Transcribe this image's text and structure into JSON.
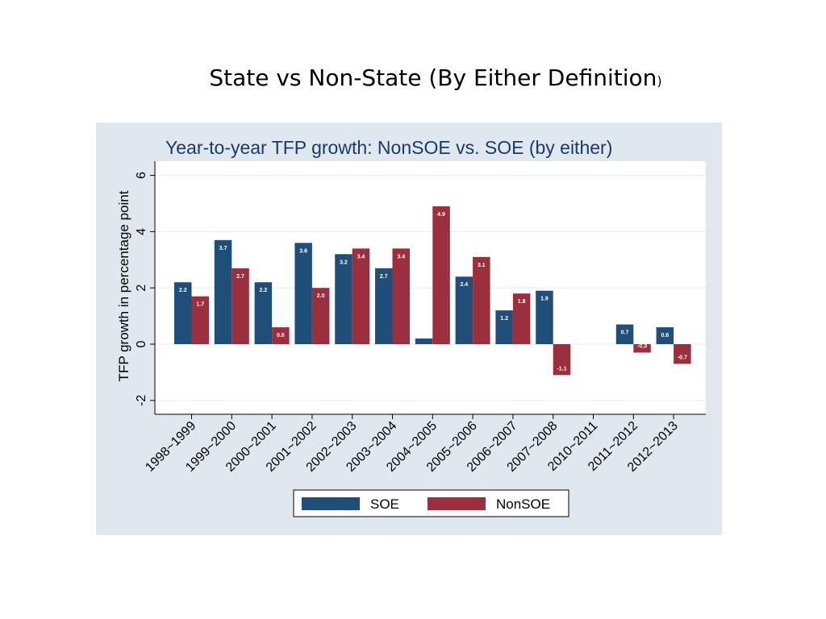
{
  "slide": {
    "title_main": "State vs Non-State (By Either Definition",
    "title_paren": ")"
  },
  "colors": {
    "soe": "#1f4e79",
    "nonsoe": "#9b2f3e",
    "panel_bg": "#dfe8ee",
    "plot_bg": "#ffffff",
    "title_color": "#1b3a6b"
  },
  "chart_data": {
    "type": "bar",
    "title": "Year-to-year TFP growth: NonSOE vs. SOE (by either)",
    "xlabel": "",
    "ylabel": "TFP growth in percentage point",
    "ylim": [
      -2.5,
      6.5
    ],
    "yticks": [
      "-2",
      "0",
      "2",
      "4",
      "6"
    ],
    "grid": true,
    "legend_position": "bottom-center",
    "categories": [
      "1998~1999",
      "1999~2000",
      "2000~2001",
      "2001~2002",
      "2002~2003",
      "2003~2004",
      "2004~2005",
      "2005~2006",
      "2006~2007",
      "2007~2008",
      "2010~2011",
      "2011~2012",
      "2012~2013"
    ],
    "series": [
      {
        "name": "SOE",
        "values": [
          2.2,
          3.7,
          2.2,
          3.6,
          3.2,
          2.7,
          0.2,
          2.4,
          1.2,
          1.9,
          0,
          0.7,
          0.6
        ],
        "labels": [
          "2.2",
          "3.7",
          "2.2",
          "3.6",
          "3.2",
          "2.7",
          "",
          "2.4",
          "1.2",
          "1.9",
          "",
          "0.7",
          "0.6"
        ]
      },
      {
        "name": "NonSOE",
        "values": [
          1.7,
          2.7,
          0.6,
          2.0,
          3.4,
          3.4,
          4.9,
          3.1,
          1.8,
          -1.1,
          0,
          -0.3,
          -0.7
        ],
        "labels": [
          "1.7",
          "2.7",
          "0.6",
          "2.0",
          "3.4",
          "3.4",
          "4.9",
          "3.1",
          "1.8",
          "-1.1",
          "",
          "-0.3",
          "-0.7"
        ]
      }
    ]
  }
}
